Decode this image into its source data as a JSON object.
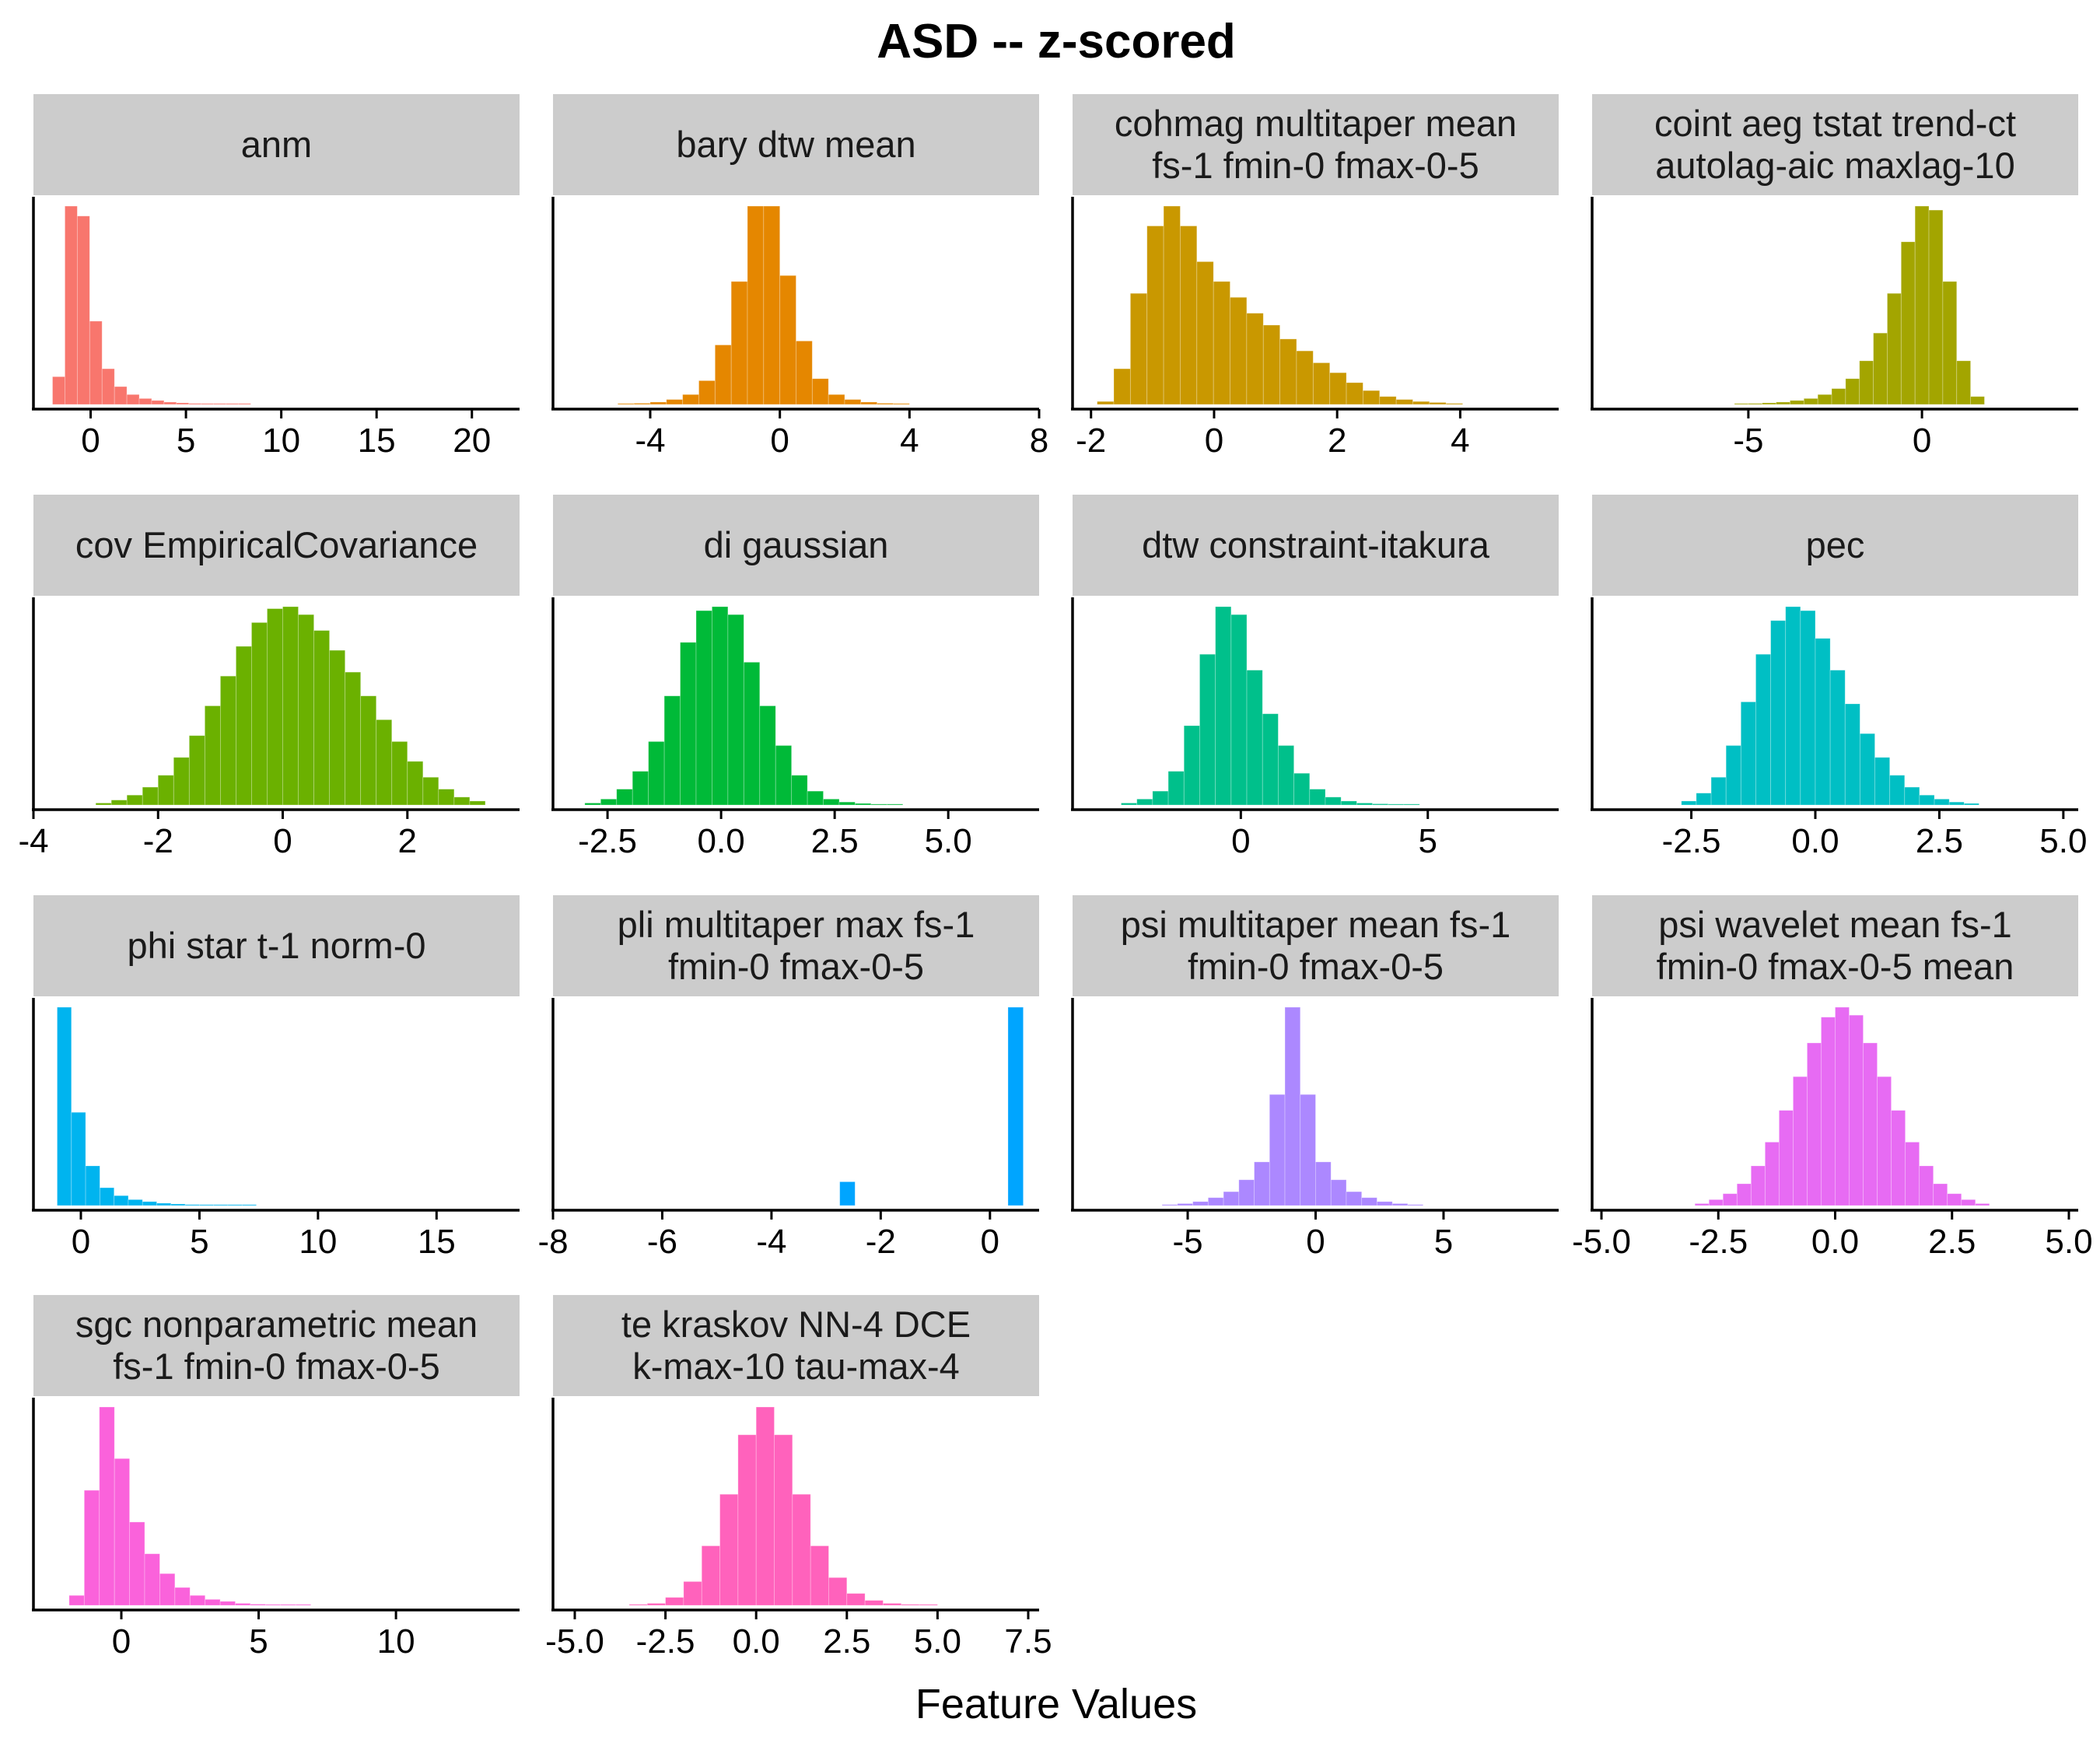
{
  "chart_data": {
    "type": "bar",
    "title": "ASD -- z-scored",
    "xlabel": "Feature Values",
    "ylabel": "",
    "panels": [
      {
        "name_lines": [
          "anm"
        ],
        "color": "#F8766D",
        "xlim": [
          -3,
          22.5
        ],
        "xticks": [
          0,
          5,
          10,
          15,
          20
        ],
        "xtick_labels": [
          "0",
          "5",
          "10",
          "15",
          "20"
        ],
        "bin_start": -2,
        "bin_width": 0.65,
        "values": [
          14,
          100,
          95,
          42,
          18,
          9,
          5,
          3,
          2,
          1.2,
          0.8,
          0.5,
          0.3,
          0.2,
          0.1,
          0.1
        ]
      },
      {
        "name_lines": [
          "bary dtw mean"
        ],
        "color": "#E58700",
        "xlim": [
          -7,
          8
        ],
        "xticks": [
          -4,
          0,
          4,
          8
        ],
        "xtick_labels": [
          "-4",
          "0",
          "4",
          "8"
        ],
        "bin_start": -5,
        "bin_width": 0.5,
        "values": [
          0.3,
          0.6,
          1.2,
          2.5,
          5,
          12,
          30,
          62,
          100,
          100,
          65,
          32,
          13,
          5,
          2.5,
          1.2,
          0.6,
          0.3
        ]
      },
      {
        "name_lines": [
          "cohmag multitaper mean",
          "fs-1 fmin-0 fmax-0-5"
        ],
        "color": "#C99800",
        "xlim": [
          -2.3,
          5.6
        ],
        "xticks": [
          -2,
          0,
          2,
          4
        ],
        "xtick_labels": [
          "-2",
          "0",
          "2",
          "4"
        ],
        "bin_start": -1.9,
        "bin_width": 0.27,
        "values": [
          1.5,
          18,
          56,
          90,
          100,
          90,
          72,
          62,
          54,
          46,
          40,
          33,
          27,
          21,
          16,
          11,
          7,
          4,
          2.5,
          1.5,
          1,
          0.5
        ]
      },
      {
        "name_lines": [
          "coint aeg tstat trend-ct",
          "autolag-aic maxlag-10"
        ],
        "color": "#A3A500",
        "xlim": [
          -9.5,
          4.5
        ],
        "xticks": [
          -5,
          0
        ],
        "xtick_labels": [
          "-5",
          "0"
        ],
        "bin_start": -5.4,
        "bin_width": 0.4,
        "values": [
          0.3,
          0.5,
          0.8,
          1.2,
          2,
          3,
          5,
          8,
          13,
          22,
          36,
          56,
          82,
          100,
          98,
          62,
          22,
          4
        ]
      },
      {
        "name_lines": [
          "cov EmpiricalCovariance"
        ],
        "color": "#6BB100",
        "xlim": [
          -4,
          3.8
        ],
        "xticks": [
          -4,
          -2,
          0,
          2
        ],
        "xtick_labels": [
          "-4",
          "-2",
          "0",
          "2"
        ],
        "bin_start": -3.0,
        "bin_width": 0.25,
        "values": [
          1,
          2.5,
          5,
          9,
          15,
          24,
          35,
          50,
          65,
          80,
          92,
          99,
          100,
          96,
          88,
          78,
          67,
          55,
          43,
          32,
          22,
          14,
          8,
          4,
          2
        ]
      },
      {
        "name_lines": [
          "di gaussian"
        ],
        "color": "#00BA38",
        "xlim": [
          -3.7,
          7
        ],
        "xticks": [
          -2.5,
          0.0,
          2.5,
          5.0
        ],
        "xtick_labels": [
          "-2.5",
          "0.0",
          "2.5",
          "5.0"
        ],
        "bin_start": -3.0,
        "bin_width": 0.35,
        "values": [
          1,
          3,
          8,
          17,
          32,
          55,
          82,
          98,
          100,
          96,
          72,
          50,
          30,
          15,
          7,
          3,
          1.5,
          0.8,
          0.4,
          0.2
        ]
      },
      {
        "name_lines": [
          "dtw constraint-itakura"
        ],
        "color": "#00C08B",
        "xlim": [
          -4.5,
          8.5
        ],
        "xticks": [
          0,
          5
        ],
        "xtick_labels": [
          "0",
          "5"
        ],
        "bin_start": -3.2,
        "bin_width": 0.42,
        "values": [
          1,
          3,
          7,
          17,
          40,
          76,
          100,
          96,
          68,
          46,
          30,
          16,
          8,
          4,
          2,
          1,
          0.6,
          0.3,
          0.2
        ]
      },
      {
        "name_lines": [
          "pec"
        ],
        "color": "#00BFC4",
        "xlim": [
          -4.5,
          5.3
        ],
        "xticks": [
          -2.5,
          0.0,
          2.5,
          5.0
        ],
        "xtick_labels": [
          "-2.5",
          "0.0",
          "2.5",
          "5.0"
        ],
        "bin_start": -2.7,
        "bin_width": 0.3,
        "values": [
          2,
          6,
          14,
          30,
          52,
          76,
          93,
          100,
          98,
          84,
          68,
          51,
          36,
          24,
          15,
          9,
          5,
          3,
          1.5,
          0.8
        ]
      },
      {
        "name_lines": [
          "phi star t-1 norm-0"
        ],
        "color": "#00B4EF",
        "xlim": [
          -2,
          18.5
        ],
        "xticks": [
          0,
          5,
          10,
          15
        ],
        "xtick_labels": [
          "0",
          "5",
          "10",
          "15"
        ],
        "bin_start": -1.0,
        "bin_width": 0.6,
        "values": [
          100,
          47,
          20,
          9,
          5,
          3,
          2,
          1.2,
          0.8,
          0.5,
          0.3,
          0.2,
          0.1,
          0.1
        ]
      },
      {
        "name_lines": [
          "pli multitaper max fs-1",
          "fmin-0 fmax-0-5"
        ],
        "color": "#00A5FF",
        "xlim": [
          -8,
          0.9
        ],
        "xticks": [
          -8,
          -6,
          -4,
          -2,
          0
        ],
        "xtick_labels": [
          "-8",
          "-6",
          "-4",
          "-2",
          "0"
        ],
        "bin_start": -2.75,
        "bin_width": 0.28,
        "values": [
          12,
          0,
          0,
          0,
          0,
          0,
          0,
          0,
          0,
          0,
          0,
          100
        ]
      },
      {
        "name_lines": [
          "psi multitaper mean fs-1",
          "fmin-0 fmax-0-5"
        ],
        "color": "#AC88FF",
        "xlim": [
          -9.5,
          9.5
        ],
        "xticks": [
          -5,
          0,
          5
        ],
        "xtick_labels": [
          "-5",
          "0",
          "5"
        ],
        "bin_start": -6.0,
        "bin_width": 0.6,
        "values": [
          0.5,
          1,
          2,
          4,
          7,
          13,
          22,
          56,
          100,
          56,
          22,
          13,
          7,
          4,
          2,
          1,
          0.5
        ]
      },
      {
        "name_lines": [
          "psi wavelet mean fs-1",
          "fmin-0 fmax-0-5 mean"
        ],
        "color": "#E76BF3",
        "xlim": [
          -5.2,
          5.2
        ],
        "xticks": [
          -5.0,
          -2.5,
          0.0,
          2.5,
          5.0
        ],
        "xtick_labels": [
          "-5.0",
          "-2.5",
          "0.0",
          "2.5",
          "5.0"
        ],
        "bin_start": -3.0,
        "bin_width": 0.3,
        "values": [
          1,
          3,
          6,
          11,
          20,
          32,
          48,
          65,
          82,
          95,
          100,
          96,
          82,
          65,
          48,
          32,
          20,
          11,
          6,
          3,
          1
        ]
      },
      {
        "name_lines": [
          "sgc nonparametric mean",
          "fs-1 fmin-0 fmax-0-5"
        ],
        "color": "#FA62DB",
        "xlim": [
          -3.2,
          14.5
        ],
        "xticks": [
          0,
          5,
          10
        ],
        "xtick_labels": [
          "0",
          "5",
          "10"
        ],
        "bin_start": -1.9,
        "bin_width": 0.55,
        "values": [
          5,
          58,
          100,
          74,
          42,
          26,
          16,
          9,
          5,
          3,
          2,
          1,
          0.6,
          0.3,
          0.2,
          0.1
        ]
      },
      {
        "name_lines": [
          "te kraskov NN-4 DCE",
          "k-max-10 tau-max-4"
        ],
        "color": "#FF62BC",
        "xlim": [
          -5.6,
          7.8
        ],
        "xticks": [
          -5.0,
          -2.5,
          0.0,
          2.5,
          5.0,
          7.5
        ],
        "xtick_labels": [
          "-5.0",
          "-2.5",
          "0.0",
          "2.5",
          "5.0",
          "7.5"
        ],
        "bin_start": -3.5,
        "bin_width": 0.5,
        "values": [
          0.5,
          1,
          4,
          12,
          30,
          56,
          86,
          100,
          86,
          56,
          30,
          14,
          6,
          2.5,
          1,
          0.5,
          0.2
        ]
      }
    ]
  }
}
